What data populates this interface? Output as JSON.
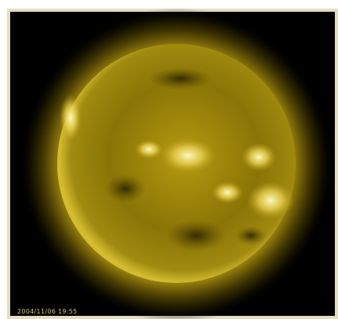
{
  "image": {
    "timestamp": "2004/11/06 19:55"
  }
}
